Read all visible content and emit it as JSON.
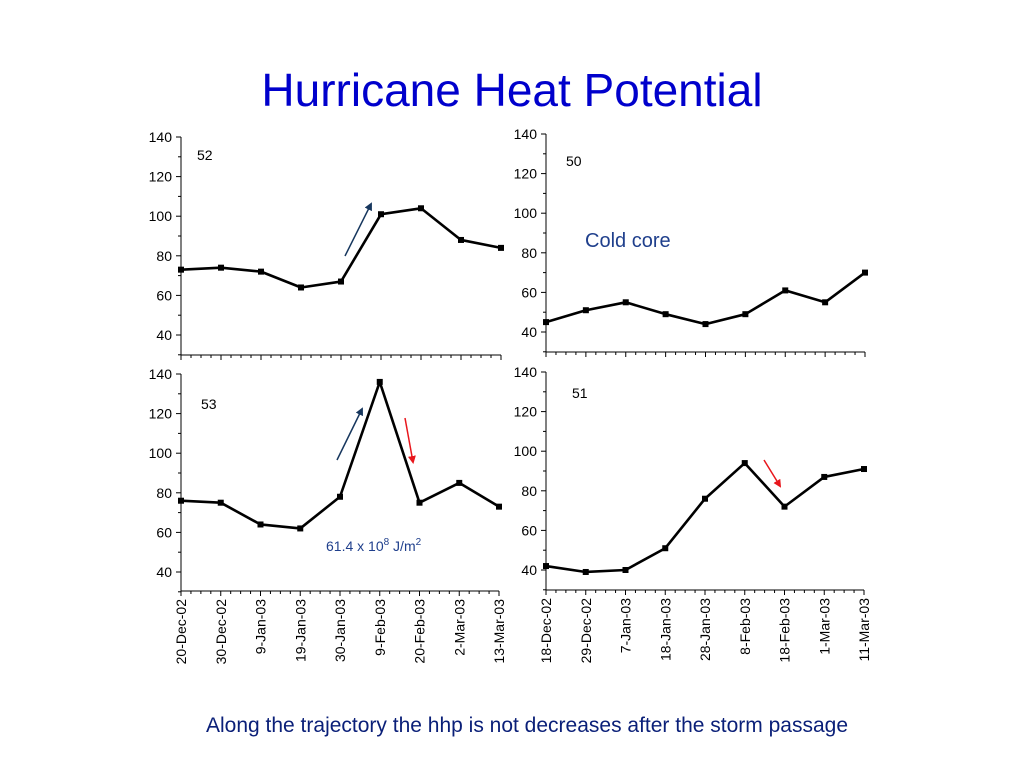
{
  "title": "Hurricane Heat Potential",
  "caption": "Along the trajectory the hhp is not decreases after the storm passage",
  "colors": {
    "title": "#0000cc",
    "caption": "#0a1f78",
    "line": "#000000",
    "blue_arrow": "#17375e",
    "red_arrow": "#e8161c",
    "annotation": "#1f3f8c"
  },
  "chart_data": [
    {
      "type": "line",
      "panel_label": "52",
      "ylim": [
        30,
        140
      ],
      "yticks": [
        40,
        60,
        80,
        100,
        120,
        140
      ],
      "categories": [
        "20-Dec-02",
        "30-Dec-02",
        "9-Jan-03",
        "19-Jan-03",
        "30-Jan-03",
        "9-Feb-03",
        "20-Feb-03",
        "2-Mar-03",
        "13-Mar-03"
      ],
      "values": [
        73,
        74,
        72,
        64,
        67,
        101,
        104,
        88,
        84
      ],
      "x_tick_labels_shown": false,
      "arrows": [
        {
          "color": "blue",
          "direction": "up"
        }
      ]
    },
    {
      "type": "line",
      "panel_label": "50",
      "annotation": "Cold core",
      "ylim": [
        30,
        140
      ],
      "yticks": [
        40,
        60,
        80,
        100,
        120,
        140
      ],
      "categories": [
        "18-Dec-02",
        "29-Dec-02",
        "7-Jan-03",
        "18-Jan-03",
        "28-Jan-03",
        "8-Feb-03",
        "18-Feb-03",
        "1-Mar-03",
        "11-Mar-03"
      ],
      "values": [
        45,
        51,
        55,
        49,
        44,
        49,
        61,
        55,
        70
      ],
      "x_tick_labels_shown": false,
      "arrows": []
    },
    {
      "type": "line",
      "panel_label": "53",
      "annotation": "61.4 x 10",
      "annotation_sup": "8",
      "annotation_unit": " J/m",
      "annotation_unit_sup": "2",
      "ylim": [
        30,
        140
      ],
      "yticks": [
        40,
        60,
        80,
        100,
        120,
        140
      ],
      "categories": [
        "20-Dec-02",
        "30-Dec-02",
        "9-Jan-03",
        "19-Jan-03",
        "30-Jan-03",
        "9-Feb-03",
        "20-Feb-03",
        "2-Mar-03",
        "13-Mar-03"
      ],
      "values": [
        76,
        75,
        64,
        62,
        78,
        136,
        75,
        85,
        73
      ],
      "x_tick_labels_shown": true,
      "arrows": [
        {
          "color": "blue",
          "direction": "up"
        },
        {
          "color": "red",
          "direction": "down"
        }
      ]
    },
    {
      "type": "line",
      "panel_label": "51",
      "ylim": [
        30,
        140
      ],
      "yticks": [
        40,
        60,
        80,
        100,
        120,
        140
      ],
      "categories": [
        "18-Dec-02",
        "29-Dec-02",
        "7-Jan-03",
        "18-Jan-03",
        "28-Jan-03",
        "8-Feb-03",
        "18-Feb-03",
        "1-Mar-03",
        "11-Mar-03"
      ],
      "values": [
        42,
        39,
        40,
        51,
        76,
        94,
        72,
        87,
        91
      ],
      "x_tick_labels_shown": true,
      "arrows": [
        {
          "color": "red",
          "direction": "down"
        }
      ]
    }
  ]
}
